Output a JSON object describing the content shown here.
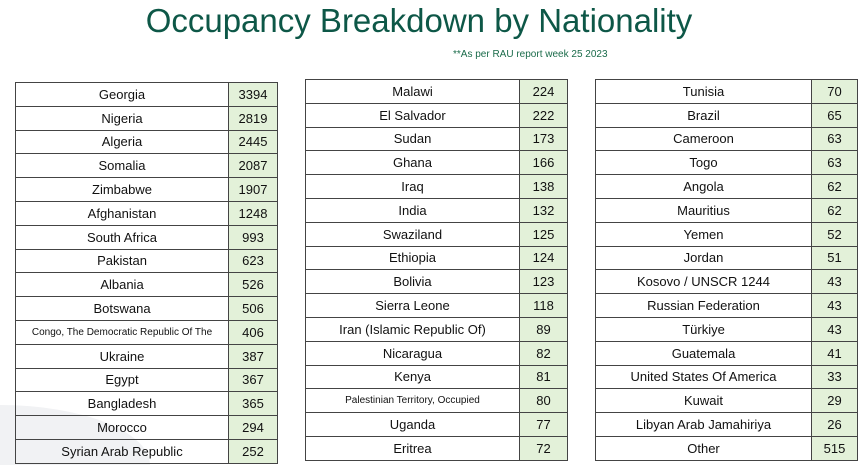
{
  "title": "Occupancy Breakdown by Nationality",
  "note": "**As per RAU report week 25 2023",
  "tables": [
    [
      [
        "Georgia",
        "3394"
      ],
      [
        "Nigeria",
        "2819"
      ],
      [
        "Algeria",
        "2445"
      ],
      [
        "Somalia",
        "2087"
      ],
      [
        "Zimbabwe",
        "1907"
      ],
      [
        "Afghanistan",
        "1248"
      ],
      [
        "South Africa",
        "993"
      ],
      [
        "Pakistan",
        "623"
      ],
      [
        "Albania",
        "526"
      ],
      [
        "Botswana",
        "506"
      ],
      [
        "Congo, The Democratic Republic Of The",
        "406"
      ],
      [
        "Ukraine",
        "387"
      ],
      [
        "Egypt",
        "367"
      ],
      [
        "Bangladesh",
        "365"
      ],
      [
        "Morocco",
        "294"
      ],
      [
        "Syrian Arab Republic",
        "252"
      ]
    ],
    [
      [
        "Malawi",
        "224"
      ],
      [
        "El Salvador",
        "222"
      ],
      [
        "Sudan",
        "173"
      ],
      [
        "Ghana",
        "166"
      ],
      [
        "Iraq",
        "138"
      ],
      [
        "India",
        "132"
      ],
      [
        "Swaziland",
        "125"
      ],
      [
        "Ethiopia",
        "124"
      ],
      [
        "Bolivia",
        "123"
      ],
      [
        "Sierra Leone",
        "118"
      ],
      [
        "Iran (Islamic Republic Of)",
        "89"
      ],
      [
        "Nicaragua",
        "82"
      ],
      [
        "Kenya",
        "81"
      ],
      [
        "Palestinian Territory, Occupied",
        "80"
      ],
      [
        "Uganda",
        "77"
      ],
      [
        "Eritrea",
        "72"
      ]
    ],
    [
      [
        "Tunisia",
        "70"
      ],
      [
        "Brazil",
        "65"
      ],
      [
        "Cameroon",
        "63"
      ],
      [
        "Togo",
        "63"
      ],
      [
        "Angola",
        "62"
      ],
      [
        "Mauritius",
        "62"
      ],
      [
        "Yemen",
        "52"
      ],
      [
        "Jordan",
        "51"
      ],
      [
        "Kosovo / UNSCR 1244",
        "43"
      ],
      [
        "Russian Federation",
        "43"
      ],
      [
        "Türkiye",
        "43"
      ],
      [
        "Guatemala",
        "41"
      ],
      [
        "United States Of America",
        "33"
      ],
      [
        "Kuwait",
        "29"
      ],
      [
        "Libyan Arab Jamahiriya",
        "26"
      ],
      [
        "Other",
        "515"
      ]
    ]
  ]
}
